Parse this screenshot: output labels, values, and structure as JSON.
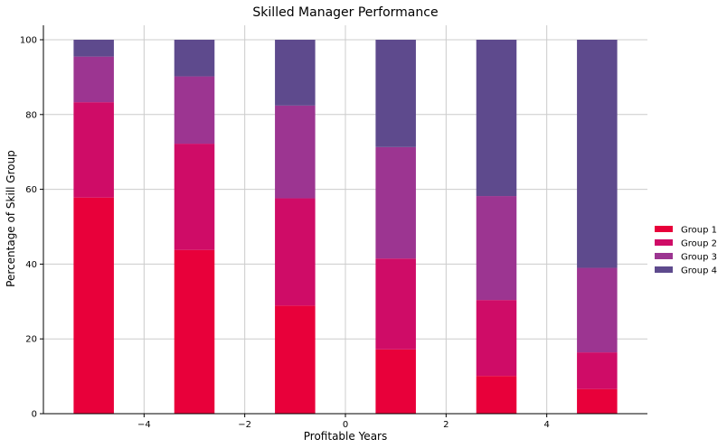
{
  "chart_data": {
    "type": "bar",
    "stacked": true,
    "title": "Skilled Manager Performance",
    "xlabel": "Profitable Years",
    "ylabel": "Percentage of Skill Group",
    "x": [
      -5,
      -3,
      -1,
      1,
      3,
      5
    ],
    "xlim": [
      -6,
      6
    ],
    "ylim": [
      0,
      100
    ],
    "xticks": [
      -4,
      -2,
      0,
      2,
      4
    ],
    "xtick_labels": [
      "−4",
      "−2",
      "0",
      "2",
      "4"
    ],
    "yticks": [
      0,
      20,
      40,
      60,
      80,
      100
    ],
    "grid": true,
    "legend_position": "right",
    "series": [
      {
        "name": "Group 1",
        "color": "#e8003a",
        "values": [
          57.8,
          43.8,
          28.9,
          17.2,
          10.1,
          6.6
        ]
      },
      {
        "name": "Group 2",
        "color": "#cf0c67",
        "values": [
          25.5,
          28.4,
          28.7,
          24.3,
          20.3,
          9.8
        ]
      },
      {
        "name": "Group 3",
        "color": "#9c3591",
        "values": [
          12.2,
          18.0,
          24.8,
          29.8,
          27.8,
          22.6
        ]
      },
      {
        "name": "Group 4",
        "color": "#5e4a8d",
        "values": [
          4.5,
          9.8,
          17.6,
          28.7,
          41.8,
          61.0
        ]
      }
    ]
  }
}
